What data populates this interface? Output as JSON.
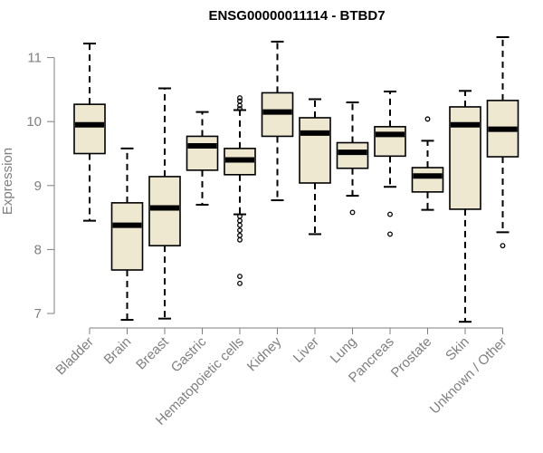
{
  "chart_data": {
    "type": "boxplot",
    "title": "ENSG00000011114 - BTBD7",
    "xlabel": "",
    "ylabel": "Expression",
    "ylim": [
      6.85,
      11.45
    ],
    "yticks": [
      7,
      8,
      9,
      10,
      11
    ],
    "colors": {
      "box_fill": "#efe8d1",
      "median": "#000000",
      "axis": "#7f7f7f"
    },
    "categories": [
      "Bladder",
      "Brain",
      "Breast",
      "Gastric",
      "Hematopoietic cells",
      "Kidney",
      "Liver",
      "Lung",
      "Pancreas",
      "Prostate",
      "Skin",
      "Unknown / Other"
    ],
    "boxes": [
      {
        "min": 8.45,
        "q1": 9.5,
        "median": 9.95,
        "q3": 10.27,
        "max": 11.22,
        "outliers": []
      },
      {
        "min": 6.9,
        "q1": 7.68,
        "median": 8.38,
        "q3": 8.73,
        "max": 9.58,
        "outliers": []
      },
      {
        "min": 6.92,
        "q1": 8.06,
        "median": 8.65,
        "q3": 9.14,
        "max": 10.52,
        "outliers": []
      },
      {
        "min": 8.7,
        "q1": 9.24,
        "median": 9.62,
        "q3": 9.77,
        "max": 10.15,
        "outliers": []
      },
      {
        "min": 8.55,
        "q1": 9.17,
        "median": 9.4,
        "q3": 9.58,
        "max": 10.18,
        "outliers": [
          10.37,
          10.32,
          10.25,
          10.2,
          8.52,
          8.45,
          8.38,
          8.3,
          8.22,
          8.15,
          7.58,
          7.47
        ]
      },
      {
        "min": 8.77,
        "q1": 9.77,
        "median": 10.15,
        "q3": 10.45,
        "max": 11.25,
        "outliers": []
      },
      {
        "min": 8.24,
        "q1": 9.04,
        "median": 9.82,
        "q3": 10.06,
        "max": 10.35,
        "outliers": []
      },
      {
        "min": 8.84,
        "q1": 9.27,
        "median": 9.52,
        "q3": 9.67,
        "max": 10.3,
        "outliers": [
          8.58
        ]
      },
      {
        "min": 8.98,
        "q1": 9.46,
        "median": 9.8,
        "q3": 9.92,
        "max": 10.47,
        "outliers": [
          8.55,
          8.24
        ]
      },
      {
        "min": 8.62,
        "q1": 8.9,
        "median": 9.15,
        "q3": 9.28,
        "max": 9.7,
        "outliers": [
          10.04
        ]
      },
      {
        "min": 6.87,
        "q1": 8.63,
        "median": 9.95,
        "q3": 10.23,
        "max": 10.48,
        "outliers": []
      },
      {
        "min": 8.27,
        "q1": 9.45,
        "median": 9.88,
        "q3": 10.33,
        "max": 11.32,
        "outliers": [
          8.06
        ]
      }
    ]
  }
}
